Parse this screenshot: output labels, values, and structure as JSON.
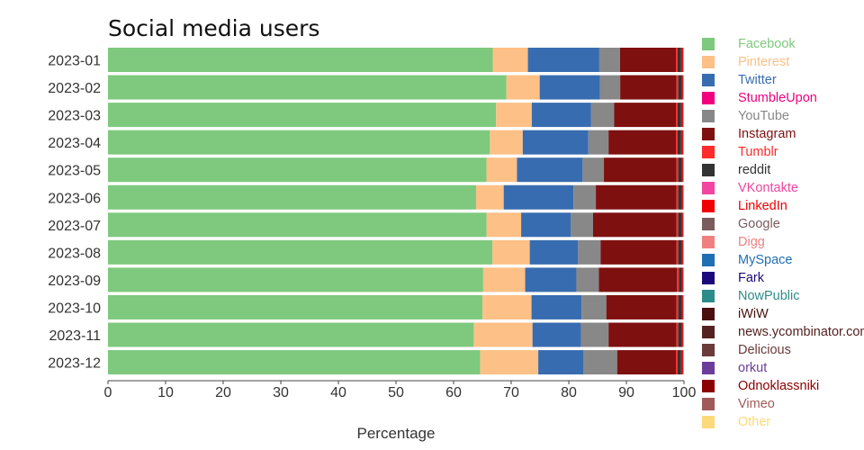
{
  "chart_data": {
    "type": "bar",
    "orientation": "horizontal",
    "stacked": true,
    "title": "Social media users",
    "xlabel": "Percentage",
    "ylabel": "",
    "xlim": [
      0,
      100
    ],
    "x_ticks": [
      "0",
      "10",
      "20",
      "30",
      "40",
      "50",
      "60",
      "70",
      "80",
      "90",
      "100"
    ],
    "grid": false,
    "legend_position": "right",
    "categories": [
      "2023-01",
      "2023-02",
      "2023-03",
      "2023-04",
      "2023-05",
      "2023-06",
      "2023-07",
      "2023-08",
      "2023-09",
      "2023-10",
      "2023-11",
      "2023-12"
    ],
    "series": [
      {
        "name": "Facebook",
        "color": "#7ec97e",
        "values": [
          66.8,
          69.3,
          67.3,
          66.3,
          65.7,
          63.9,
          65.8,
          66.8,
          65.2,
          65.1,
          63.5,
          64.6
        ]
      },
      {
        "name": "Pinterest",
        "color": "#fdc086",
        "values": [
          6.1,
          5.8,
          6.2,
          5.7,
          5.3,
          4.8,
          6.0,
          6.5,
          7.3,
          8.5,
          10.2,
          10.1
        ]
      },
      {
        "name": "Twitter",
        "color": "#386cb0",
        "values": [
          12.4,
          10.5,
          10.3,
          11.4,
          11.4,
          12.1,
          8.6,
          8.4,
          8.9,
          8.7,
          8.4,
          7.8
        ]
      },
      {
        "name": "StumbleUpon",
        "color": "#f0027f",
        "values": [
          0.0,
          0.0,
          0.0,
          0.0,
          0.0,
          0.0,
          0.0,
          0.0,
          0.0,
          0.0,
          0.0,
          0.0
        ]
      },
      {
        "name": "YouTube",
        "color": "#888888",
        "values": [
          3.6,
          3.5,
          4.0,
          3.5,
          3.7,
          3.9,
          3.9,
          3.9,
          3.9,
          4.3,
          4.8,
          5.9
        ]
      },
      {
        "name": "Instagram",
        "color": "#7f1010",
        "values": [
          9.7,
          9.8,
          10.7,
          11.7,
          12.6,
          14.0,
          14.5,
          13.2,
          13.6,
          12.2,
          11.8,
          10.2
        ]
      },
      {
        "name": "Tumblr",
        "color": "#ff2a2a",
        "values": [
          0.3,
          0.3,
          0.3,
          0.3,
          0.3,
          0.3,
          0.3,
          0.3,
          0.3,
          0.3,
          0.3,
          0.3
        ]
      },
      {
        "name": "reddit",
        "color": "#333333",
        "values": [
          0.6,
          0.6,
          0.6,
          0.6,
          0.6,
          0.6,
          0.6,
          0.6,
          0.5,
          0.6,
          0.6,
          0.6
        ]
      },
      {
        "name": "VKontakte",
        "color": "#f2459f",
        "values": [
          0.0,
          0.0,
          0.0,
          0.0,
          0.0,
          0.0,
          0.0,
          0.0,
          0.0,
          0.0,
          0.0,
          0.0
        ]
      },
      {
        "name": "LinkedIn",
        "color": "#f00000",
        "values": [
          0.3,
          0.2,
          0.3,
          0.3,
          0.2,
          0.2,
          0.2,
          0.2,
          0.2,
          0.2,
          0.2,
          0.3
        ]
      },
      {
        "name": "Google",
        "color": "#7a5c5c",
        "values": [
          0.0,
          0.0,
          0.0,
          0.0,
          0.0,
          0.0,
          0.0,
          0.0,
          0.0,
          0.0,
          0.0,
          0.0
        ]
      },
      {
        "name": "Digg",
        "color": "#f08080",
        "values": [
          0.0,
          0.0,
          0.0,
          0.0,
          0.0,
          0.0,
          0.0,
          0.0,
          0.0,
          0.0,
          0.0,
          0.0
        ]
      },
      {
        "name": "MySpace",
        "color": "#1f6fb5",
        "values": [
          0.0,
          0.0,
          0.0,
          0.0,
          0.0,
          0.0,
          0.0,
          0.0,
          0.0,
          0.0,
          0.0,
          0.0
        ]
      },
      {
        "name": "Fark",
        "color": "#1a0a7a",
        "values": [
          0.0,
          0.0,
          0.0,
          0.0,
          0.0,
          0.0,
          0.0,
          0.0,
          0.0,
          0.0,
          0.0,
          0.0
        ]
      },
      {
        "name": "NowPublic",
        "color": "#2e8b8b",
        "values": [
          0.0,
          0.0,
          0.0,
          0.0,
          0.0,
          0.0,
          0.0,
          0.0,
          0.0,
          0.0,
          0.0,
          0.0
        ]
      },
      {
        "name": "iWiW",
        "color": "#4a1010",
        "values": [
          0.0,
          0.0,
          0.0,
          0.0,
          0.0,
          0.0,
          0.0,
          0.0,
          0.0,
          0.0,
          0.0,
          0.0
        ]
      },
      {
        "name": "news.ycombinator.com",
        "color": "#552020",
        "values": [
          0.0,
          0.0,
          0.0,
          0.0,
          0.0,
          0.0,
          0.0,
          0.0,
          0.0,
          0.0,
          0.0,
          0.0
        ]
      },
      {
        "name": "Delicious",
        "color": "#6b3a3a",
        "values": [
          0.0,
          0.0,
          0.0,
          0.0,
          0.0,
          0.0,
          0.0,
          0.0,
          0.0,
          0.0,
          0.0,
          0.0
        ]
      },
      {
        "name": "orkut",
        "color": "#6a3d9a",
        "values": [
          0.0,
          0.0,
          0.0,
          0.0,
          0.0,
          0.0,
          0.0,
          0.0,
          0.0,
          0.0,
          0.0,
          0.0
        ]
      },
      {
        "name": "Odnoklassniki",
        "color": "#8b0000",
        "values": [
          0.1,
          0.1,
          0.1,
          0.1,
          0.1,
          0.1,
          0.1,
          0.1,
          0.1,
          0.1,
          0.1,
          0.1
        ]
      },
      {
        "name": "Vimeo",
        "color": "#a05a5a",
        "values": [
          0.0,
          0.0,
          0.0,
          0.0,
          0.0,
          0.0,
          0.0,
          0.0,
          0.0,
          0.0,
          0.0,
          0.0
        ]
      },
      {
        "name": "Other",
        "color": "#fcd97a",
        "values": [
          0.1,
          0.1,
          0.1,
          0.1,
          0.1,
          0.1,
          0.1,
          0.1,
          0.1,
          0.1,
          0.1,
          0.1
        ]
      }
    ]
  }
}
